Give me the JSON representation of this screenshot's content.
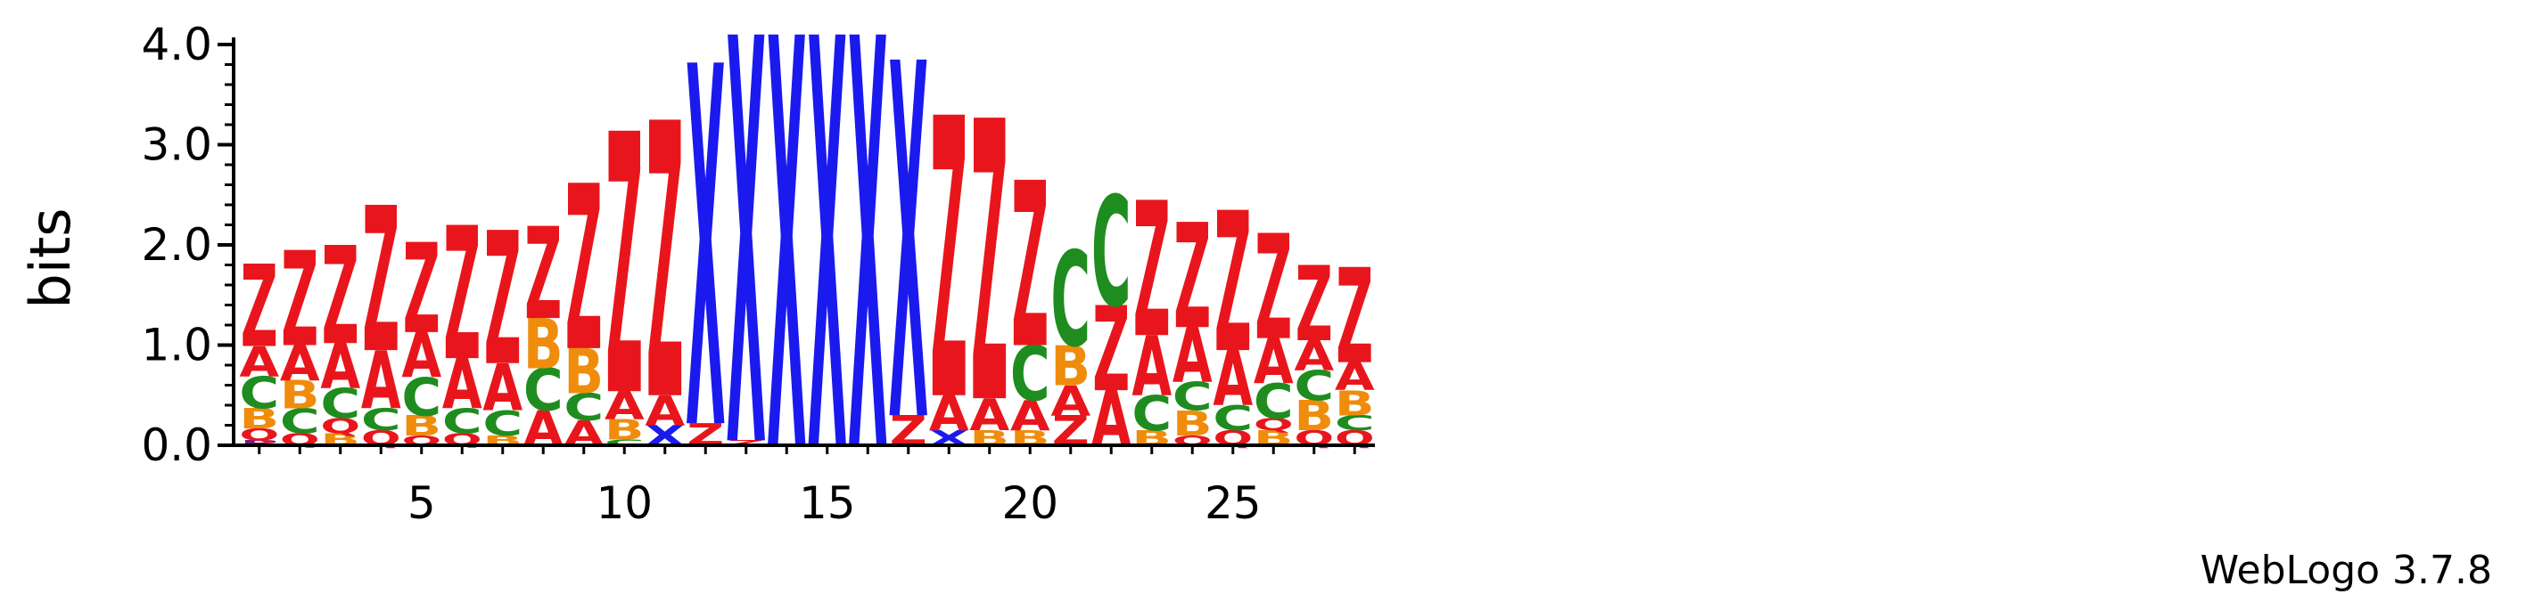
{
  "chart_data": {
    "type": "sequence-logo",
    "ylabel": "bits",
    "ylim": [
      0,
      4.0
    ],
    "y_ticks": [
      "0.0",
      "1.0",
      "2.0",
      "3.0",
      "4.0"
    ],
    "x_ticks": [
      "5",
      "10",
      "15",
      "20",
      "25"
    ],
    "x_tick_values": [
      5,
      10,
      15,
      20,
      25
    ],
    "footer": "WebLogo 3.7.8",
    "colors": {
      "Z": "#e8161c",
      "X": "#1a1aee",
      "A": "#e8161c",
      "B": "#f08c0c",
      "C": "#1f8c1f",
      "Q": "#e8161c",
      "P": "#7a1f7a"
    },
    "positions": [
      {
        "pos": 1,
        "stack": [
          [
            "P",
            0.05
          ],
          [
            "Q",
            0.12
          ],
          [
            "B",
            0.2
          ],
          [
            "C",
            0.32
          ],
          [
            "A",
            0.3
          ],
          [
            "Z",
            0.82
          ]
        ]
      },
      {
        "pos": 2,
        "stack": [
          [
            "Q",
            0.12
          ],
          [
            "C",
            0.25
          ],
          [
            "B",
            0.28
          ],
          [
            "A",
            0.35
          ],
          [
            "Z",
            0.95
          ]
        ]
      },
      {
        "pos": 3,
        "stack": [
          [
            "B",
            0.12
          ],
          [
            "Q",
            0.15
          ],
          [
            "C",
            0.3
          ],
          [
            "A",
            0.45
          ],
          [
            "Z",
            0.98
          ]
        ]
      },
      {
        "pos": 4,
        "stack": [
          [
            "Q",
            0.15
          ],
          [
            "C",
            0.22
          ],
          [
            "A",
            0.58
          ],
          [
            "Z",
            1.45
          ]
        ]
      },
      {
        "pos": 5,
        "stack": [
          [
            "Q",
            0.1
          ],
          [
            "B",
            0.2
          ],
          [
            "C",
            0.38
          ],
          [
            "A",
            0.45
          ],
          [
            "Z",
            0.9
          ]
        ]
      },
      {
        "pos": 6,
        "stack": [
          [
            "Q",
            0.12
          ],
          [
            "C",
            0.25
          ],
          [
            "A",
            0.5
          ],
          [
            "Z",
            1.33
          ]
        ]
      },
      {
        "pos": 7,
        "stack": [
          [
            "B",
            0.1
          ],
          [
            "C",
            0.25
          ],
          [
            "A",
            0.47
          ],
          [
            "Z",
            1.33
          ]
        ]
      },
      {
        "pos": 8,
        "stack": [
          [
            "A",
            0.35
          ],
          [
            "C",
            0.42
          ],
          [
            "B",
            0.5
          ],
          [
            "Z",
            0.92
          ]
        ]
      },
      {
        "pos": 9,
        "stack": [
          [
            "A",
            0.25
          ],
          [
            "C",
            0.27
          ],
          [
            "B",
            0.45
          ],
          [
            "Z",
            1.65
          ]
        ]
      },
      {
        "pos": 10,
        "stack": [
          [
            "C",
            0.06
          ],
          [
            "B",
            0.2
          ],
          [
            "A",
            0.28
          ],
          [
            "Z",
            2.6
          ]
        ]
      },
      {
        "pos": 11,
        "stack": [
          [
            "X",
            0.2
          ],
          [
            "A",
            0.3
          ],
          [
            "Z",
            2.75
          ]
        ]
      },
      {
        "pos": 12,
        "stack": [
          [
            "Z",
            0.22
          ],
          [
            "X",
            3.6
          ]
        ]
      },
      {
        "pos": 13,
        "stack": [
          [
            "Z",
            0.05
          ],
          [
            "X",
            4.05
          ]
        ]
      },
      {
        "pos": 14,
        "stack": [
          [
            "X",
            4.1
          ]
        ]
      },
      {
        "pos": 15,
        "stack": [
          [
            "X",
            4.1
          ]
        ]
      },
      {
        "pos": 16,
        "stack": [
          [
            "X",
            4.1
          ]
        ]
      },
      {
        "pos": 17,
        "stack": [
          [
            "Z",
            0.3
          ],
          [
            "X",
            3.55
          ]
        ]
      },
      {
        "pos": 18,
        "stack": [
          [
            "X",
            0.15
          ],
          [
            "A",
            0.35
          ],
          [
            "Z",
            2.8
          ]
        ]
      },
      {
        "pos": 19,
        "stack": [
          [
            "B",
            0.15
          ],
          [
            "A",
            0.32
          ],
          [
            "Z",
            2.8
          ]
        ]
      },
      {
        "pos": 20,
        "stack": [
          [
            "B",
            0.15
          ],
          [
            "A",
            0.3
          ],
          [
            "C",
            0.55
          ],
          [
            "Z",
            1.65
          ]
        ]
      },
      {
        "pos": 21,
        "stack": [
          [
            "Z",
            0.3
          ],
          [
            "A",
            0.3
          ],
          [
            "B",
            0.4
          ],
          [
            "C",
            0.95
          ]
        ]
      },
      {
        "pos": 22,
        "stack": [
          [
            "A",
            0.55
          ],
          [
            "Z",
            0.85
          ],
          [
            "C",
            1.1
          ]
        ]
      },
      {
        "pos": 23,
        "stack": [
          [
            "B",
            0.15
          ],
          [
            "C",
            0.35
          ],
          [
            "A",
            0.6
          ],
          [
            "Z",
            1.35
          ]
        ]
      },
      {
        "pos": 24,
        "stack": [
          [
            "Q",
            0.1
          ],
          [
            "B",
            0.25
          ],
          [
            "C",
            0.28
          ],
          [
            "A",
            0.55
          ],
          [
            "Z",
            1.05
          ]
        ]
      },
      {
        "pos": 25,
        "stack": [
          [
            "Q",
            0.15
          ],
          [
            "C",
            0.25
          ],
          [
            "A",
            0.55
          ],
          [
            "Z",
            1.4
          ]
        ]
      },
      {
        "pos": 26,
        "stack": [
          [
            "B",
            0.15
          ],
          [
            "Q",
            0.12
          ],
          [
            "C",
            0.35
          ],
          [
            "A",
            0.45
          ],
          [
            "Z",
            1.05
          ]
        ]
      },
      {
        "pos": 27,
        "stack": [
          [
            "Q",
            0.15
          ],
          [
            "B",
            0.3
          ],
          [
            "C",
            0.3
          ],
          [
            "A",
            0.3
          ],
          [
            "Z",
            0.75
          ]
        ]
      },
      {
        "pos": 28,
        "stack": [
          [
            "Q",
            0.15
          ],
          [
            "C",
            0.15
          ],
          [
            "B",
            0.25
          ],
          [
            "A",
            0.28
          ],
          [
            "Z",
            0.95
          ]
        ]
      }
    ]
  }
}
